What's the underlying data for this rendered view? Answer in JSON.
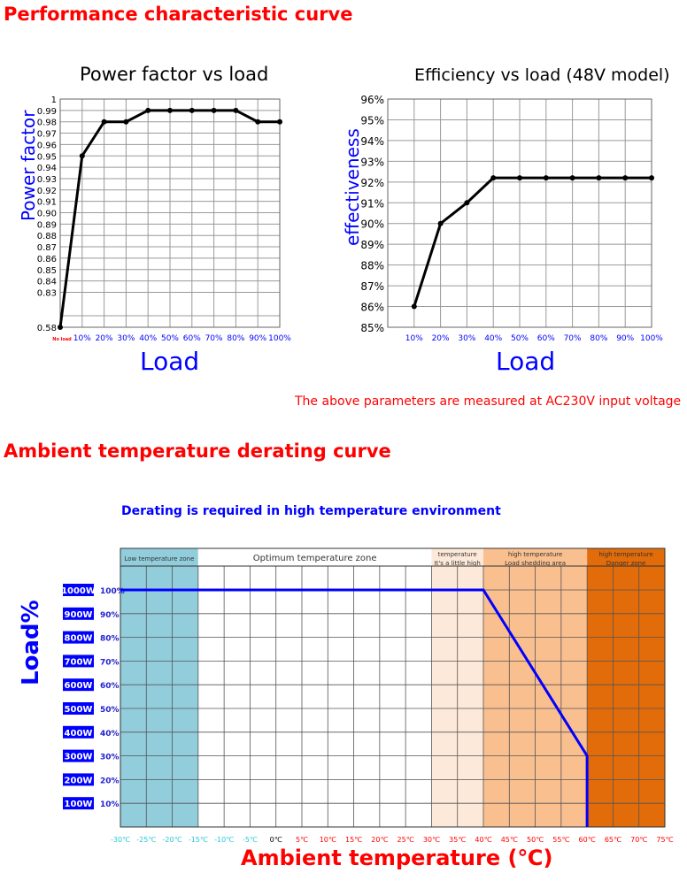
{
  "headings": {
    "performance": "Performance characteristic curve",
    "derating": "Ambient temperature derating curve"
  },
  "note": "The above parameters are measured at AC230V input voltage",
  "colors": {
    "title_red": "#ff0000",
    "axis_blue": "#0000ff",
    "line": "#000000",
    "derate_line": "#0000ff"
  },
  "chart_data": [
    {
      "type": "line",
      "title": "Power factor vs load",
      "xlabel": "Load",
      "ylabel": "Power factor",
      "categories": [
        "No load",
        "10%",
        "20%",
        "30%",
        "40%",
        "50%",
        "60%",
        "70%",
        "80%",
        "90%",
        "100%"
      ],
      "values": [
        0.58,
        0.95,
        0.98,
        0.98,
        0.99,
        0.99,
        0.99,
        0.99,
        0.99,
        0.98,
        0.98
      ],
      "yticks": [
        "1",
        "0.99",
        "0.98",
        "0.97",
        "0.96",
        "0.95",
        "0.94",
        "0.93",
        "0.92",
        "0.91",
        "0.90",
        "0.89",
        "0.88",
        "0.87",
        "0.86",
        "0.85",
        "0.84",
        "0.83",
        "0.58"
      ],
      "grid": true
    },
    {
      "type": "line",
      "title": "Efficiency vs load (48V model)",
      "xlabel": "Load",
      "ylabel": "effectiveness",
      "categories": [
        "10%",
        "20%",
        "30%",
        "40%",
        "50%",
        "60%",
        "70%",
        "80%",
        "90%",
        "100%"
      ],
      "values": [
        86,
        90,
        91,
        92.2,
        92.2,
        92.2,
        92.2,
        92.2,
        92.2,
        92.2
      ],
      "yticks": [
        "96%",
        "95%",
        "94%",
        "93%",
        "92%",
        "91%",
        "90%",
        "89%",
        "88%",
        "87%",
        "86%",
        "85%"
      ],
      "ylim": [
        85,
        96
      ],
      "grid": true
    },
    {
      "type": "line",
      "title": "Derating is required in high temperature environment",
      "xlabel": "Ambient temperature (℃)",
      "ylabel": "Load%",
      "x": [
        -30,
        40,
        60,
        60
      ],
      "values": [
        100,
        100,
        30,
        0
      ],
      "xlim": [
        -30,
        75
      ],
      "ylim": [
        0,
        100
      ],
      "xticks": [
        "-30℃",
        "-25℃",
        "-20℃",
        "-15℃",
        "-10℃",
        "-5℃",
        "0℃",
        "5℃",
        "10℃",
        "15℃",
        "20℃",
        "25℃",
        "30℃",
        "35℃",
        "40℃",
        "45℃",
        "50℃",
        "55℃",
        "60℃",
        "65℃",
        "70℃",
        "75℃"
      ],
      "yticks": [
        "100%",
        "90%",
        "80%",
        "70%",
        "60%",
        "50%",
        "40%",
        "30%",
        "20%",
        "10%"
      ],
      "watt_labels": [
        "1000W",
        "900W",
        "800W",
        "700W",
        "600W",
        "500W",
        "400W",
        "300W",
        "200W",
        "100W"
      ],
      "zones": [
        {
          "from": -30,
          "to": -15,
          "label": "Low temperature zone",
          "color": "#92cddc"
        },
        {
          "from": -15,
          "to": 30,
          "label": "Optimum temperature zone",
          "color": "#ffffff"
        },
        {
          "from": 30,
          "to": 40,
          "label": "temperature\nIt's a little high",
          "color": "#fde9d9"
        },
        {
          "from": 40,
          "to": 60,
          "label": "high temperature\nLoad shedding area",
          "color": "#fabf8f"
        },
        {
          "from": 60,
          "to": 75,
          "label": "high temperature\nDanger zone",
          "color": "#e26b0a"
        }
      ]
    }
  ]
}
